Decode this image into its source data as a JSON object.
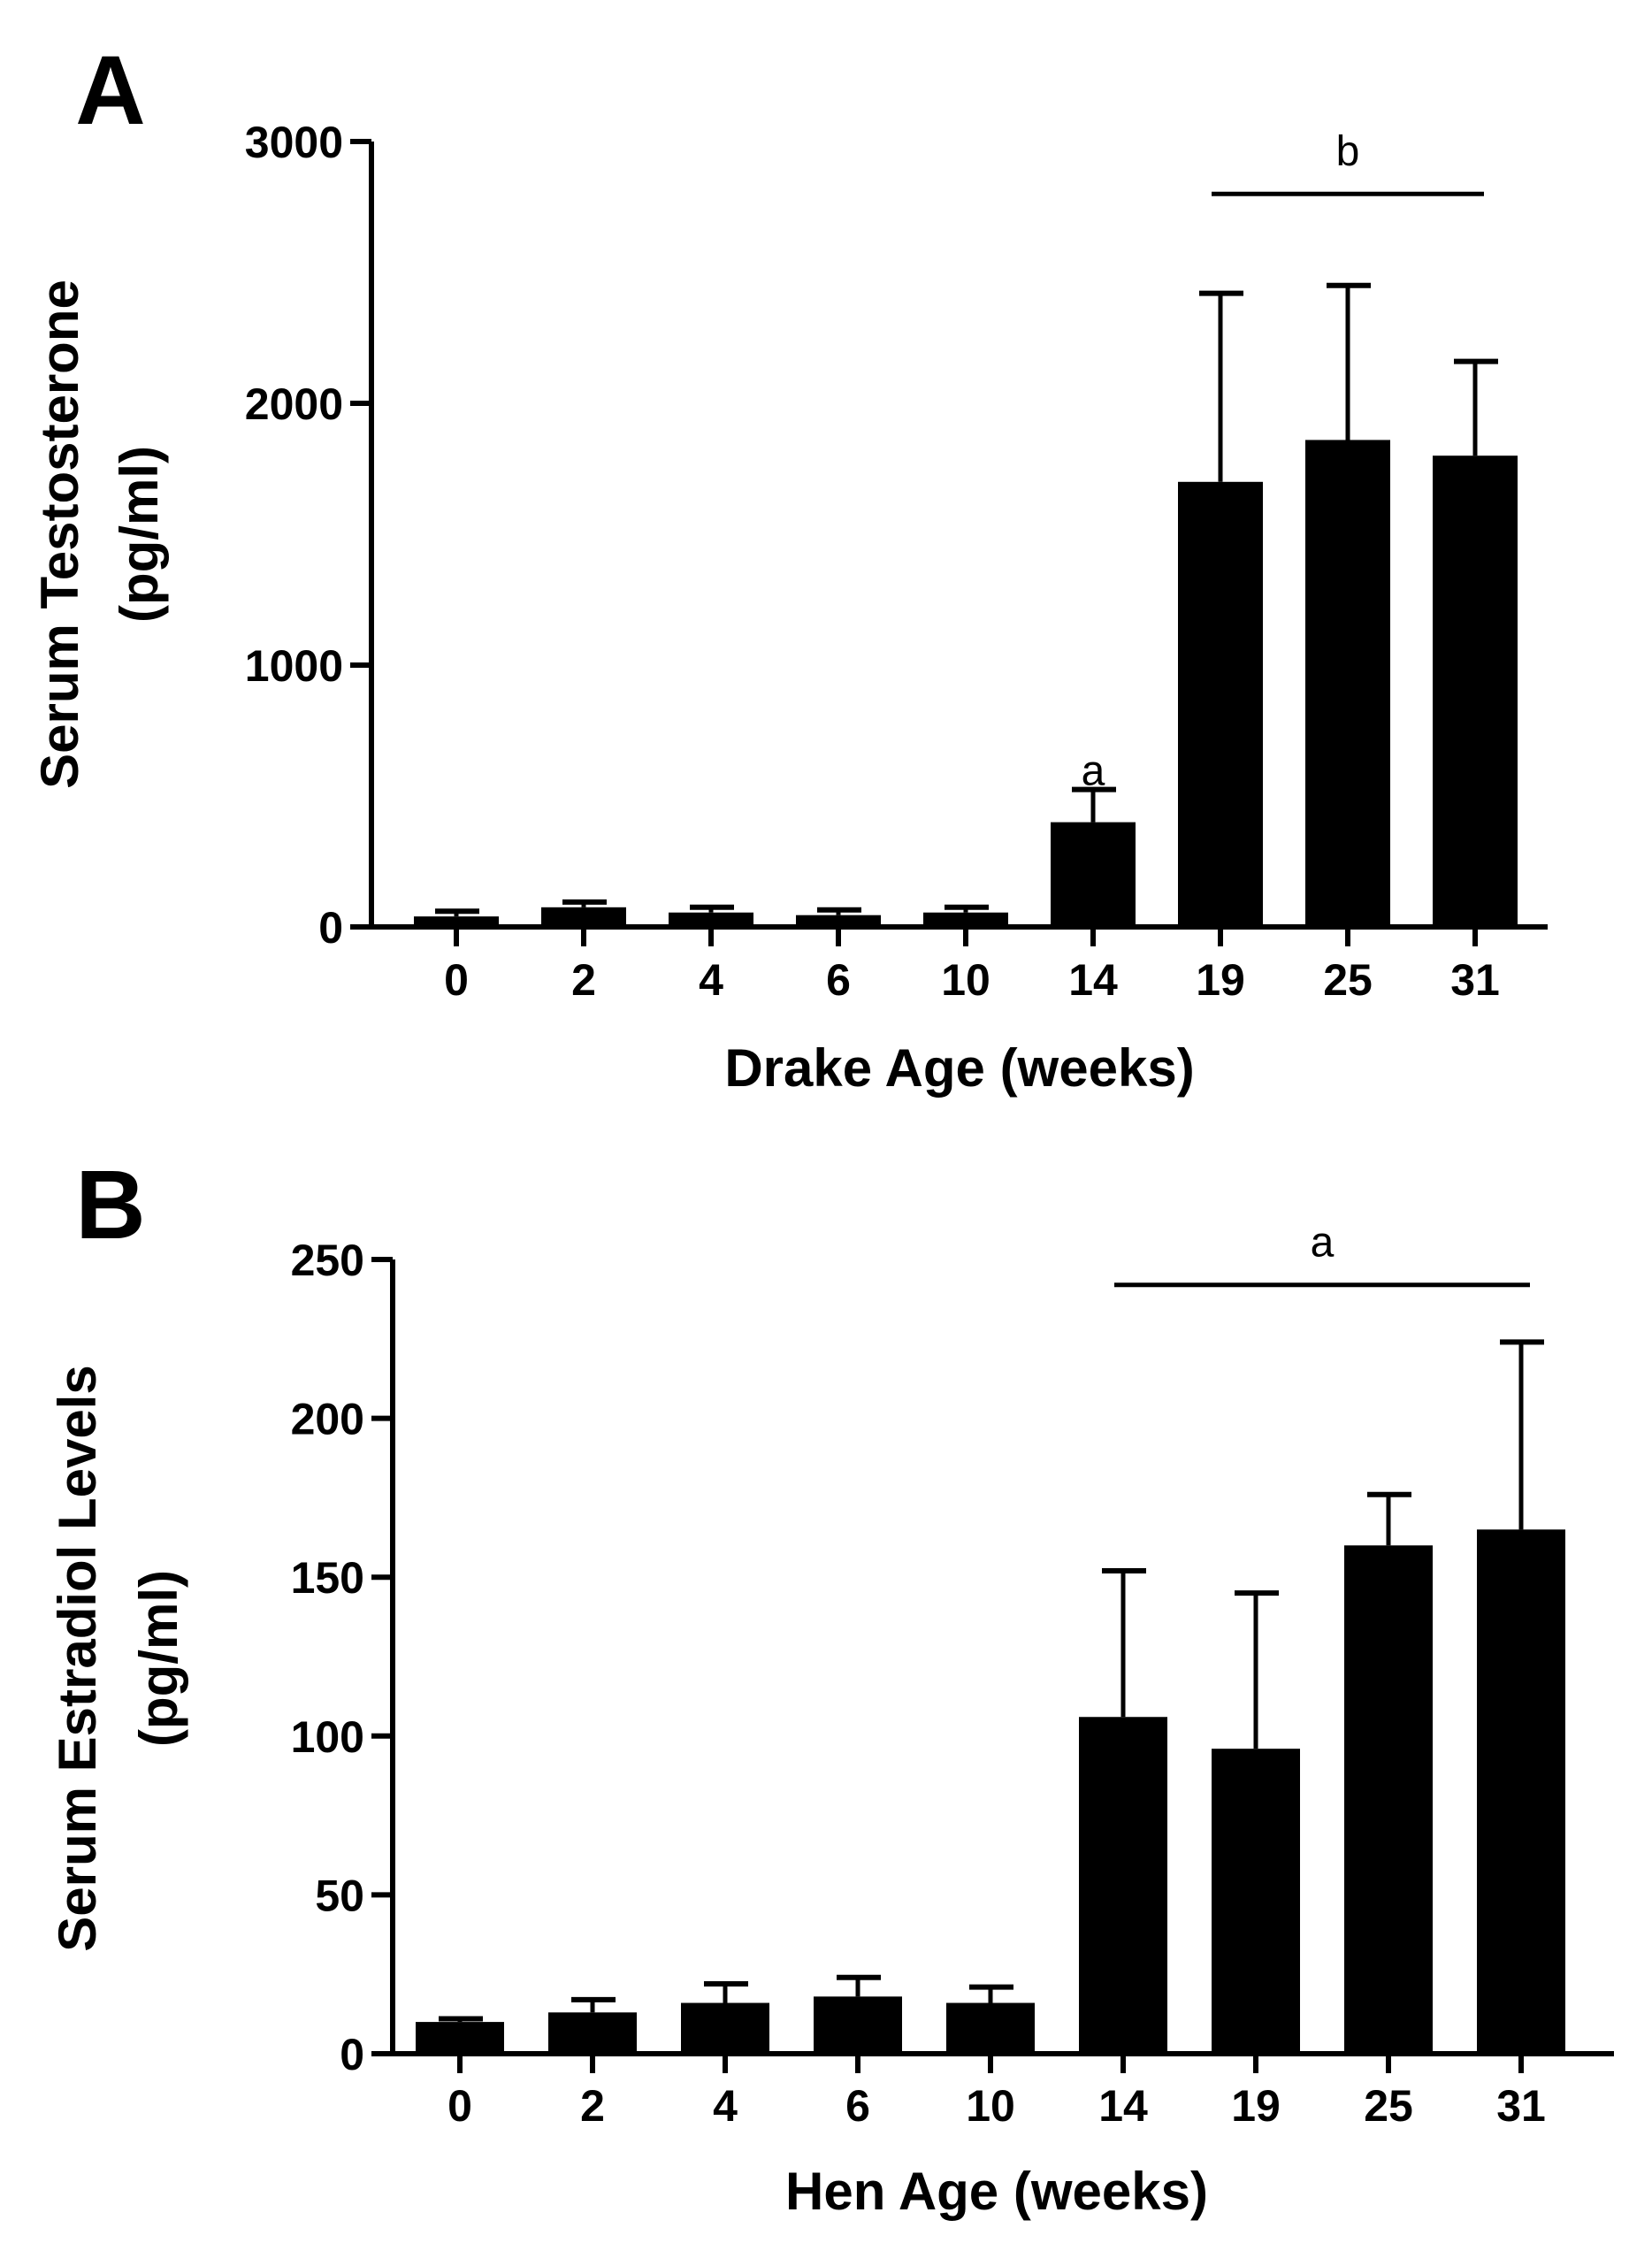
{
  "chart_data": [
    {
      "type": "bar",
      "panel_label": "A",
      "categories": [
        "0",
        "2",
        "4",
        "6",
        "10",
        "14",
        "19",
        "25",
        "31"
      ],
      "values": [
        40,
        75,
        55,
        45,
        55,
        400,
        1700,
        1860,
        1800
      ],
      "error_upper": [
        60,
        95,
        75,
        65,
        75,
        525,
        2420,
        2450,
        2160
      ],
      "xlabel": "Drake Age (weeks)",
      "ylabel_line1": "Serum Testosterone",
      "ylabel_line2": "(pg/ml)",
      "ylim": [
        0,
        3000
      ],
      "yticks": [
        0,
        1000,
        2000,
        3000
      ],
      "ytick_labels": [
        "0",
        "1000",
        "2000",
        "3000"
      ],
      "annotations": [
        {
          "text": "a",
          "from_category": "14",
          "to_category": "14",
          "y": 590,
          "bracket": false
        },
        {
          "text": "b",
          "from_category": "19",
          "to_category": "31",
          "y": 2800,
          "bracket": true
        }
      ]
    },
    {
      "type": "bar",
      "panel_label": "B",
      "categories": [
        "0",
        "2",
        "4",
        "6",
        "10",
        "14",
        "19",
        "25",
        "31"
      ],
      "values": [
        10,
        13,
        16,
        18,
        16,
        106,
        96,
        160,
        165
      ],
      "error_upper": [
        11,
        17,
        22,
        24,
        21,
        152,
        145,
        176,
        224
      ],
      "xlabel": "Hen Age (weeks)",
      "ylabel_line1": "Serum Estradiol Levels",
      "ylabel_line2": "(pg/ml)",
      "ylim": [
        0,
        250
      ],
      "yticks": [
        0,
        50,
        100,
        150,
        200,
        250
      ],
      "ytick_labels": [
        "0",
        "50",
        "100",
        "150",
        "200",
        "250"
      ],
      "annotations": [
        {
          "text": "a",
          "from_category": "14",
          "to_category": "31",
          "y": 242,
          "bracket": true
        }
      ]
    }
  ]
}
